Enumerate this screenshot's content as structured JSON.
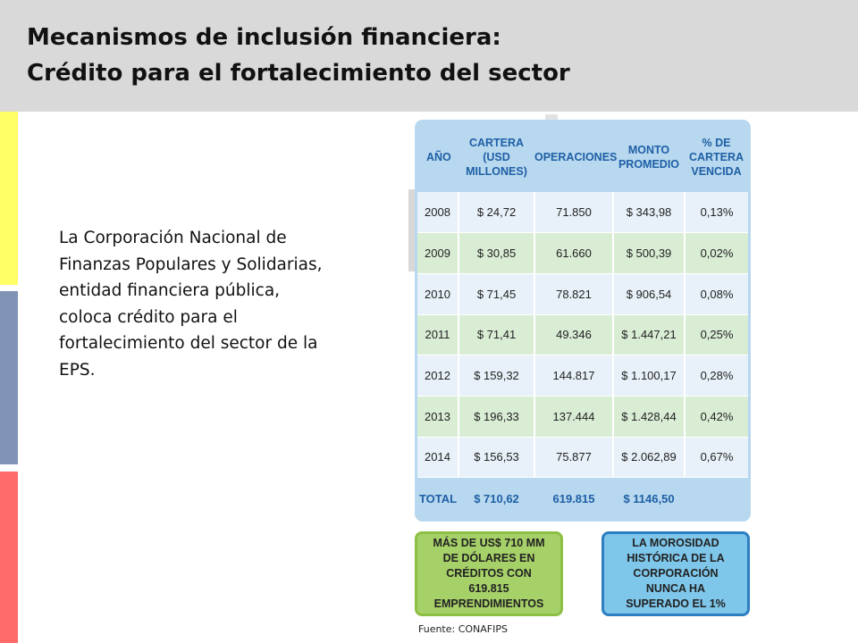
{
  "colors": {
    "header_bg": "#d9d9d9",
    "bar_yellow": "#ffff66",
    "bar_blue": "#7f93b6",
    "bar_red": "#ff6b6b",
    "table_header_text": "#1f5fa6"
  },
  "slide": {
    "title_line1": "Mecanismos de inclusión financiera:",
    "title_line2": "Crédito para el fortalecimiento del sector",
    "body_text": "La Corporación Nacional de Finanzas Populares y Solidarias, entidad financiera pública, coloca crédito para el fortalecimiento del sector de la EPS.",
    "source": "Fuente: CONAFIPS"
  },
  "table": {
    "headers": [
      "AÑO",
      "CARTERA (USD MILLONES)",
      "OPERACIONES",
      "MONTO PROMEDIO",
      "% DE CARTERA VENCIDA"
    ],
    "rows": [
      [
        "2008",
        "$ 24,72",
        "71.850",
        "$ 343,98",
        "0,13%"
      ],
      [
        "2009",
        "$ 30,85",
        "61.660",
        "$ 500,39",
        "0,02%"
      ],
      [
        "2010",
        "$ 71,45",
        "78.821",
        "$ 906,54",
        "0,08%"
      ],
      [
        "2011",
        "$ 71,41",
        "49.346",
        "$ 1.447,21",
        "0,25%"
      ],
      [
        "2012",
        "$ 159,32",
        "144.817",
        "$ 1.100,17",
        "0,28%"
      ],
      [
        "2013",
        "$ 196,33",
        "137.444",
        "$ 1.428,44",
        "0,42%"
      ],
      [
        "2014",
        "$ 156,53",
        "75.877",
        "$ 2.062,89",
        "0,67%"
      ]
    ],
    "total": [
      "TOTAL",
      "$ 710,62",
      "619.815",
      "$ 1146,50",
      ""
    ]
  },
  "callouts": {
    "green": "MÁS DE US$ 710 MM DE DÓLARES EN CRÉDITOS CON 619.815 EMPRENDIMIENTOS",
    "blue": "LA MOROSIDAD HISTÓRICA DE LA CORPORACIÓN NUNCA HA SUPERADO EL 1%"
  }
}
